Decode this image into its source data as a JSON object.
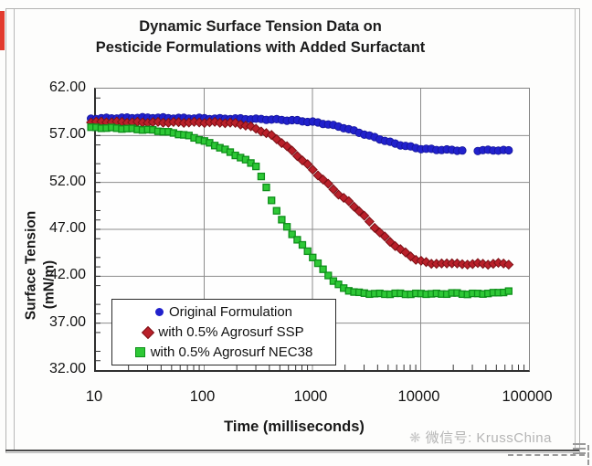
{
  "figure": {
    "title_line1": "Dynamic Surface Tension Data on",
    "title_line2": "Pesticide Formulations with Added Surfactant"
  },
  "watermark": {
    "icon": "wechat-flower-logo",
    "text": "微信号: KrussChina"
  },
  "chart_data": {
    "type": "scatter",
    "title": "Dynamic Surface Tension Data on Pesticide Formulations with Added Surfactant",
    "xlabel": "Time (milliseconds)",
    "ylabel_line1": "Surface Tension",
    "ylabel_line2": "(mN/m)",
    "x_scale": "log",
    "xlim": [
      10,
      100000
    ],
    "ylim": [
      32,
      62
    ],
    "grid": true,
    "gridline_color": "#8c8c8c",
    "x_ticks": [
      "10",
      "100",
      "1000",
      "10000",
      "100000"
    ],
    "y_ticks": [
      "62.00",
      "57.00",
      "52.00",
      "47.00",
      "42.00",
      "37.00",
      "32.00"
    ],
    "legend_position": "inside-bottom-left",
    "series": [
      {
        "name": "Original Formulation",
        "marker": "circle",
        "color": "#2121cc",
        "border_color": "#15159a",
        "gap": [
          26500,
          33500
        ],
        "points": [
          [
            9,
            58.8
          ],
          [
            14,
            58.85
          ],
          [
            22,
            58.9
          ],
          [
            35,
            58.9
          ],
          [
            55,
            58.85
          ],
          [
            85,
            58.85
          ],
          [
            130,
            58.8
          ],
          [
            200,
            58.8
          ],
          [
            300,
            58.75
          ],
          [
            450,
            58.7
          ],
          [
            700,
            58.6
          ],
          [
            1000,
            58.45
          ],
          [
            1400,
            58.2
          ],
          [
            2000,
            57.8
          ],
          [
            2800,
            57.25
          ],
          [
            4000,
            56.7
          ],
          [
            5500,
            56.2
          ],
          [
            7500,
            55.85
          ],
          [
            10000,
            55.6
          ],
          [
            14000,
            55.5
          ],
          [
            20000,
            55.45
          ],
          [
            26000,
            55.4
          ],
          [
            34000,
            55.4
          ],
          [
            45000,
            55.45
          ],
          [
            65000,
            55.4
          ]
        ]
      },
      {
        "name": "with 0.5% Agrosurf SSP",
        "marker": "diamond",
        "color": "#b9202a",
        "border_color": "#7d1016",
        "points": [
          [
            9,
            58.45
          ],
          [
            15,
            58.45
          ],
          [
            25,
            58.4
          ],
          [
            45,
            58.4
          ],
          [
            80,
            58.4
          ],
          [
            130,
            58.4
          ],
          [
            200,
            58.3
          ],
          [
            260,
            58.0
          ],
          [
            320,
            57.6
          ],
          [
            420,
            57.0
          ],
          [
            560,
            56.0
          ],
          [
            700,
            55.0
          ],
          [
            900,
            53.9
          ],
          [
            1100,
            52.9
          ],
          [
            1400,
            51.8
          ],
          [
            1800,
            50.6
          ],
          [
            2200,
            49.9
          ],
          [
            2800,
            48.8
          ],
          [
            3900,
            47.0
          ],
          [
            5300,
            45.6
          ],
          [
            7000,
            44.6
          ],
          [
            9300,
            43.7
          ],
          [
            12000,
            43.4
          ],
          [
            16000,
            43.3
          ],
          [
            20000,
            43.45
          ],
          [
            25000,
            43.2
          ],
          [
            32000,
            43.4
          ],
          [
            40000,
            43.25
          ],
          [
            50000,
            43.4
          ],
          [
            65000,
            43.3
          ]
        ]
      },
      {
        "name": "with 0.5% Agrosurf NEC38",
        "marker": "square",
        "color": "#2ec836",
        "border_color": "#0e8f1a",
        "points": [
          [
            9,
            57.85
          ],
          [
            14,
            57.8
          ],
          [
            22,
            57.7
          ],
          [
            35,
            57.55
          ],
          [
            50,
            57.3
          ],
          [
            70,
            57.0
          ],
          [
            95,
            56.5
          ],
          [
            130,
            55.9
          ],
          [
            175,
            55.2
          ],
          [
            230,
            54.5
          ],
          [
            300,
            53.8
          ],
          [
            360,
            51.9
          ],
          [
            430,
            49.8
          ],
          [
            520,
            48.0
          ],
          [
            640,
            46.6
          ],
          [
            820,
            45.2
          ],
          [
            1000,
            44.1
          ],
          [
            1250,
            42.7
          ],
          [
            1600,
            41.4
          ],
          [
            2000,
            40.6
          ],
          [
            2600,
            40.25
          ],
          [
            3400,
            40.15
          ],
          [
            4500,
            40.1
          ],
          [
            6000,
            40.15
          ],
          [
            8000,
            40.1
          ],
          [
            11000,
            40.15
          ],
          [
            15000,
            40.1
          ],
          [
            20000,
            40.2
          ],
          [
            27000,
            40.1
          ],
          [
            36000,
            40.15
          ],
          [
            48000,
            40.2
          ],
          [
            65000,
            40.4
          ]
        ]
      }
    ]
  }
}
